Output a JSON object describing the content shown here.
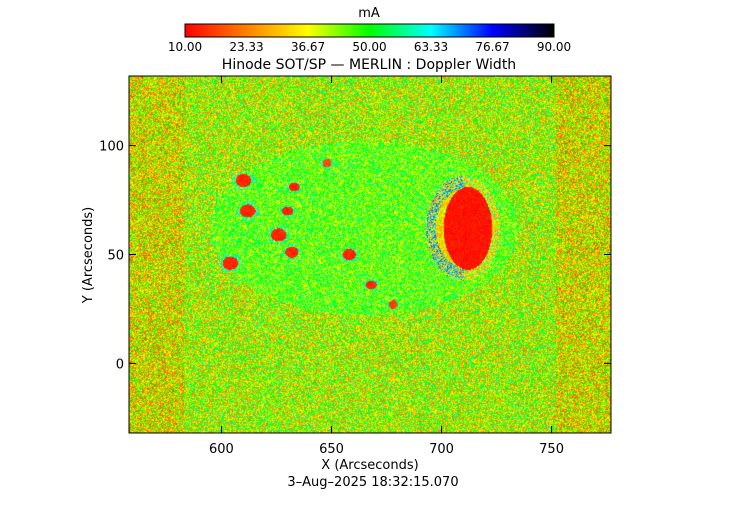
{
  "chart_data": {
    "type": "heatmap",
    "title": "Hinode SOT/SP — MERLIN : Doppler Width",
    "xlabel": "X (Arcseconds)",
    "ylabel": "Y (Arcseconds)",
    "footer": "3–Aug–2025 18:32:15.070",
    "colorbar": {
      "unit": "mA",
      "range": [
        10.0,
        90.0
      ],
      "tick_labels": [
        "10.00",
        "23.33",
        "36.67",
        "50.00",
        "63.33",
        "76.67",
        "90.00"
      ],
      "colors": [
        "#ff0000",
        "#ff8000",
        "#ffff00",
        "#00ff00",
        "#00ffff",
        "#0000ff",
        "#000000"
      ]
    },
    "x_range": [
      558,
      777
    ],
    "y_range": [
      -32,
      132
    ],
    "x_ticks": [
      600,
      650,
      700,
      750
    ],
    "y_ticks": [
      0,
      50,
      100
    ],
    "background_value": 40,
    "features": [
      {
        "name": "sunspot",
        "cx": 712,
        "cy": 62,
        "rx": 11,
        "ry": 19,
        "value": 12
      },
      {
        "name": "penumbra-ring",
        "cx": 710,
        "cy": 62,
        "rx": 17,
        "ry": 24,
        "value": 68
      },
      {
        "name": "pore",
        "cx": 610,
        "cy": 84,
        "rx": 3.5,
        "ry": 3,
        "value": 14
      },
      {
        "name": "pore",
        "cx": 612,
        "cy": 70,
        "rx": 3.5,
        "ry": 3,
        "value": 14
      },
      {
        "name": "pore",
        "cx": 630,
        "cy": 70,
        "rx": 2.5,
        "ry": 2,
        "value": 14
      },
      {
        "name": "pore",
        "cx": 633,
        "cy": 81,
        "rx": 2.5,
        "ry": 2,
        "value": 14
      },
      {
        "name": "pore",
        "cx": 626,
        "cy": 59,
        "rx": 3.5,
        "ry": 3,
        "value": 14
      },
      {
        "name": "pore",
        "cx": 632,
        "cy": 51,
        "rx": 3,
        "ry": 2.5,
        "value": 14
      },
      {
        "name": "pore",
        "cx": 604,
        "cy": 46,
        "rx": 3.5,
        "ry": 3,
        "value": 14
      },
      {
        "name": "pore",
        "cx": 658,
        "cy": 50,
        "rx": 3,
        "ry": 2.5,
        "value": 14
      },
      {
        "name": "pore",
        "cx": 668,
        "cy": 36,
        "rx": 2.5,
        "ry": 2,
        "value": 14
      },
      {
        "name": "pore",
        "cx": 678,
        "cy": 27,
        "rx": 2,
        "ry": 2,
        "value": 16
      },
      {
        "name": "pore",
        "cx": 648,
        "cy": 92,
        "rx": 2,
        "ry": 2,
        "value": 18
      }
    ]
  }
}
